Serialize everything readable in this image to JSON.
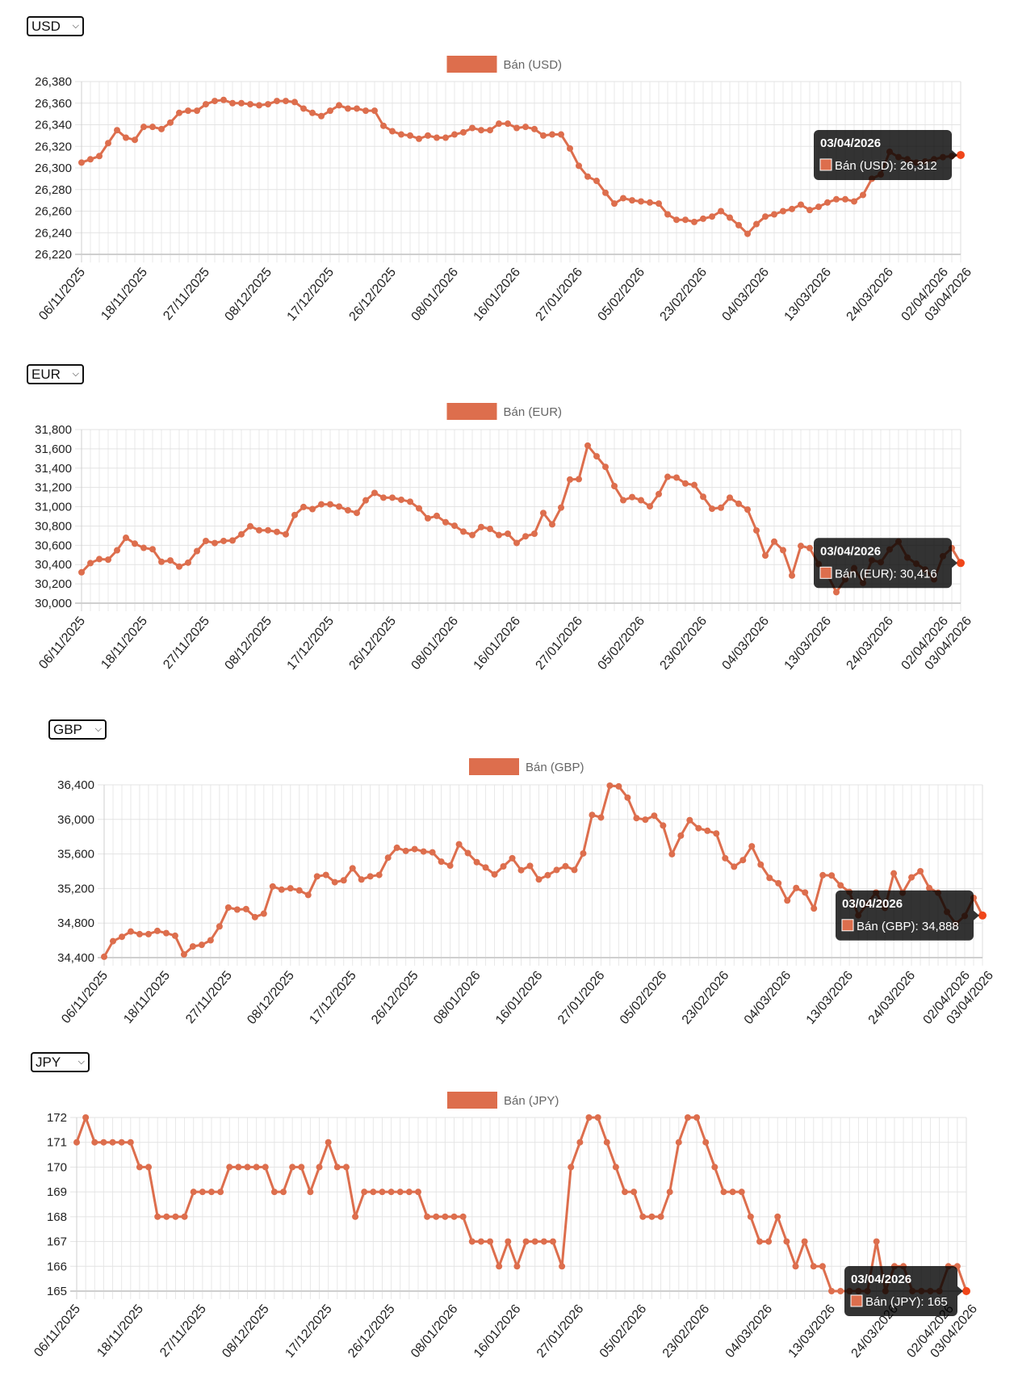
{
  "selectors": [
    {
      "value": "USD"
    },
    {
      "value": "EUR"
    },
    {
      "value": "GBP"
    },
    {
      "value": "JPY"
    }
  ],
  "icons": {
    "select_arrow": "chevron-down-icon"
  },
  "colors": {
    "line": "#dd6e4d",
    "active_point": "#f0461a",
    "tooltip_bg": "rgba(0,0,0,0.8)",
    "grid": "#e6e6e6"
  },
  "tooltips": [
    {
      "title": "03/04/2026",
      "body": "Bán (USD): 26,312"
    },
    {
      "title": "03/04/2026",
      "body": "Bán (EUR): 30,416"
    },
    {
      "title": "03/04/2026",
      "body": "Bán (GBP): 34,888"
    },
    {
      "title": "03/04/2026",
      "body": "Bán (JPY): 165"
    }
  ],
  "chart_data": [
    {
      "type": "line",
      "legend": "Bán (USD)",
      "legend_position": "top",
      "grid": true,
      "ylim": [
        26220,
        26380
      ],
      "y_tick_labels": [
        "26,380",
        "26,360",
        "26,340",
        "26,320",
        "26,300",
        "26,280",
        "26,260",
        "26,240",
        "26,220"
      ],
      "x_tick_labels": [
        "06/11/2025",
        "18/11/2025",
        "27/11/2025",
        "08/12/2025",
        "17/12/2025",
        "26/12/2025",
        "08/01/2026",
        "16/01/2026",
        "27/01/2026",
        "05/02/2026",
        "23/02/2026",
        "04/03/2026",
        "13/03/2026",
        "24/03/2026",
        "02/04/2026",
        "03/04/2026"
      ],
      "series": [
        {
          "name": "Bán (USD)",
          "values": [
            26305,
            26308,
            26311,
            26323,
            26335,
            26328,
            26326,
            26338,
            26338,
            26336,
            26342,
            26351,
            26353,
            26353,
            26359,
            26362,
            26363,
            26360,
            26360,
            26359,
            26358,
            26359,
            26362,
            26362,
            26361,
            26355,
            26351,
            26348,
            26353,
            26358,
            26355,
            26355,
            26353,
            26353,
            26339,
            26334,
            26331,
            26330,
            26327,
            26330,
            26328,
            26328,
            26331,
            26333,
            26337,
            26335,
            26335,
            26341,
            26341,
            26337,
            26338,
            26336,
            26330,
            26331,
            26331,
            26318,
            26302,
            26292,
            26288,
            26277,
            26267,
            26272,
            26270,
            26269,
            26268,
            26267,
            26257,
            26252,
            26252,
            26250,
            26253,
            26255,
            26260,
            26254,
            26247,
            26239,
            26248,
            26255,
            26257,
            26260,
            26262,
            26266,
            26261,
            26264,
            26268,
            26271,
            26271,
            26269,
            26275,
            26290,
            26294,
            26315,
            26310,
            26308,
            26305,
            26306,
            26308,
            26310,
            26311,
            26312
          ]
        }
      ]
    },
    {
      "type": "line",
      "legend": "Bán (EUR)",
      "legend_position": "top",
      "grid": true,
      "ylim": [
        30000,
        31800
      ],
      "y_tick_labels": [
        "31,800",
        "31,600",
        "31,400",
        "31,200",
        "31,000",
        "30,800",
        "30,600",
        "30,400",
        "30,200",
        "30,000"
      ],
      "x_tick_labels": [
        "06/11/2025",
        "18/11/2025",
        "27/11/2025",
        "08/12/2025",
        "17/12/2025",
        "26/12/2025",
        "08/01/2026",
        "16/01/2026",
        "27/01/2026",
        "05/02/2026",
        "23/02/2026",
        "04/03/2026",
        "13/03/2026",
        "24/03/2026",
        "02/04/2026",
        "03/04/2026"
      ],
      "series": [
        {
          "name": "Bán (EUR)",
          "values": [
            30320,
            30415,
            30457,
            30451,
            30548,
            30678,
            30617,
            30573,
            30559,
            30429,
            30443,
            30379,
            30420,
            30540,
            30645,
            30623,
            30645,
            30650,
            30714,
            30797,
            30756,
            30756,
            30739,
            30714,
            30914,
            30997,
            30975,
            31025,
            31025,
            31002,
            30963,
            30936,
            31066,
            31143,
            31094,
            31094,
            31072,
            31052,
            30983,
            30880,
            30905,
            30839,
            30803,
            30742,
            30706,
            30789,
            30770,
            30706,
            30720,
            30624,
            30693,
            30720,
            30935,
            30817,
            30991,
            31282,
            31286,
            31634,
            31523,
            31413,
            31214,
            31067,
            31100,
            31067,
            31004,
            31131,
            31310,
            31302,
            31241,
            31225,
            31103,
            30979,
            30990,
            31094,
            31031,
            30970,
            30754,
            30494,
            30638,
            30549,
            30286,
            30593,
            30571,
            30405,
            30294,
            30114,
            30247,
            30363,
            30210,
            30446,
            30424,
            30557,
            30638,
            30473,
            30409,
            30349,
            30247,
            30487,
            30571,
            30416
          ]
        }
      ]
    },
    {
      "type": "line",
      "legend": "Bán (GBP)",
      "legend_position": "top",
      "grid": true,
      "ylim": [
        34400,
        36400
      ],
      "y_tick_labels": [
        "36,400",
        "36,000",
        "35,600",
        "35,200",
        "34,800",
        "34,400"
      ],
      "x_tick_labels": [
        "06/11/2025",
        "18/11/2025",
        "27/11/2025",
        "08/12/2025",
        "17/12/2025",
        "26/12/2025",
        "08/01/2026",
        "16/01/2026",
        "27/01/2026",
        "05/02/2026",
        "23/02/2026",
        "04/03/2026",
        "13/03/2026",
        "24/03/2026",
        "02/04/2026",
        "03/04/2026"
      ],
      "series": [
        {
          "name": "Bán (GBP)",
          "values": [
            34410,
            34591,
            34641,
            34702,
            34672,
            34672,
            34709,
            34684,
            34653,
            34437,
            34530,
            34548,
            34601,
            34761,
            34980,
            34956,
            34962,
            34869,
            34909,
            35224,
            35187,
            35202,
            35178,
            35125,
            35341,
            35357,
            35273,
            35295,
            35434,
            35304,
            35341,
            35357,
            35557,
            35672,
            35635,
            35656,
            35628,
            35619,
            35511,
            35465,
            35712,
            35610,
            35505,
            35443,
            35363,
            35456,
            35551,
            35412,
            35462,
            35305,
            35354,
            35415,
            35458,
            35415,
            35606,
            36052,
            36022,
            36391,
            36382,
            36252,
            36015,
            35997,
            36043,
            35929,
            35597,
            35812,
            35991,
            35898,
            35868,
            35837,
            35551,
            35452,
            35529,
            35689,
            35477,
            35323,
            35261,
            35061,
            35206,
            35154,
            34969,
            35354,
            35351,
            35237,
            35160,
            34889,
            35021,
            35154,
            34975,
            35375,
            35151,
            35329,
            35400,
            35206,
            35151,
            34929,
            34791,
            34883,
            35092,
            34888
          ]
        }
      ]
    },
    {
      "type": "line",
      "legend": "Bán (JPY)",
      "legend_position": "top",
      "grid": true,
      "ylim": [
        165,
        172
      ],
      "y_tick_labels": [
        "172",
        "171",
        "170",
        "169",
        "168",
        "167",
        "166",
        "165"
      ],
      "x_tick_labels": [
        "06/11/2025",
        "18/11/2025",
        "27/11/2025",
        "08/12/2025",
        "17/12/2025",
        "26/12/2025",
        "08/01/2026",
        "16/01/2026",
        "27/01/2026",
        "05/02/2026",
        "23/02/2026",
        "04/03/2026",
        "13/03/2026",
        "24/03/2026",
        "02/04/2026",
        "03/04/2026"
      ],
      "series": [
        {
          "name": "Bán (JPY)",
          "values": [
            171,
            172,
            171,
            171,
            171,
            171,
            171,
            170,
            170,
            168,
            168,
            168,
            168,
            169,
            169,
            169,
            169,
            170,
            170,
            170,
            170,
            170,
            169,
            169,
            170,
            170,
            169,
            170,
            171,
            170,
            170,
            168,
            169,
            169,
            169,
            169,
            169,
            169,
            169,
            168,
            168,
            168,
            168,
            168,
            167,
            167,
            167,
            166,
            167,
            166,
            167,
            167,
            167,
            167,
            166,
            170,
            171,
            172,
            172,
            171,
            170,
            169,
            169,
            168,
            168,
            168,
            169,
            171,
            172,
            172,
            171,
            170,
            169,
            169,
            169,
            168,
            167,
            167,
            168,
            167,
            166,
            167,
            166,
            166,
            165,
            165,
            165,
            165,
            165,
            167,
            165,
            166,
            166,
            165,
            165,
            165,
            165,
            166,
            166,
            165
          ]
        }
      ]
    }
  ]
}
